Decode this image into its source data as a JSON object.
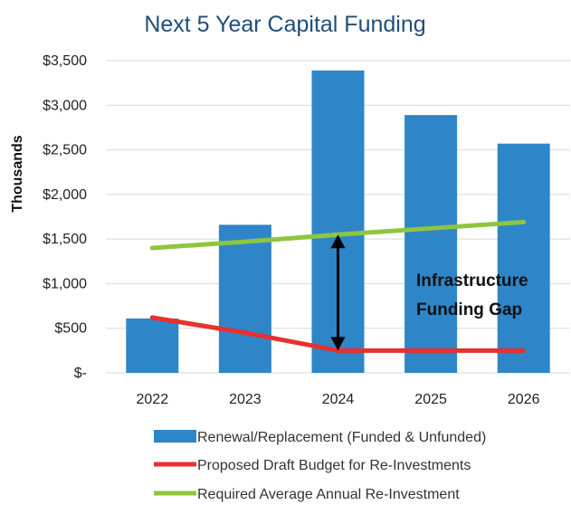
{
  "chart_data": {
    "type": "bar",
    "title": "Next 5 Year Capital Funding",
    "ylabel": "Thousands",
    "xlabel": "",
    "categories": [
      "2022",
      "2023",
      "2024",
      "2025",
      "2026"
    ],
    "ylim": [
      0,
      3500
    ],
    "yticks": [
      0,
      500,
      1000,
      1500,
      2000,
      2500,
      3000,
      3500
    ],
    "ytick_labels": [
      "$-",
      "$500",
      "$1,000",
      "$1,500",
      "$2,000",
      "$2,500",
      "$3,000",
      "$3,500"
    ],
    "grid": true,
    "legend_position": "bottom",
    "series": [
      {
        "name": "Renewal/Replacement (Funded & Unfunded)",
        "type": "bar",
        "color": "#2e86c8",
        "values": [
          610,
          1660,
          3390,
          2890,
          2570
        ]
      },
      {
        "name": "Proposed Draft Budget for Re-Investments",
        "type": "line",
        "color": "#e8302e",
        "values": [
          620,
          450,
          250,
          250,
          250
        ]
      },
      {
        "name": "Required Average Annual Re-Investment",
        "type": "line",
        "color": "#8dc63f",
        "values": [
          1400,
          1470,
          1550,
          1620,
          1690
        ]
      }
    ],
    "annotation": {
      "text_lines": [
        "Infrastructure",
        "Funding Gap"
      ],
      "arrow_x_category_offset": 2.5,
      "arrow_from_value": 1550,
      "arrow_to_value": 250
    }
  }
}
